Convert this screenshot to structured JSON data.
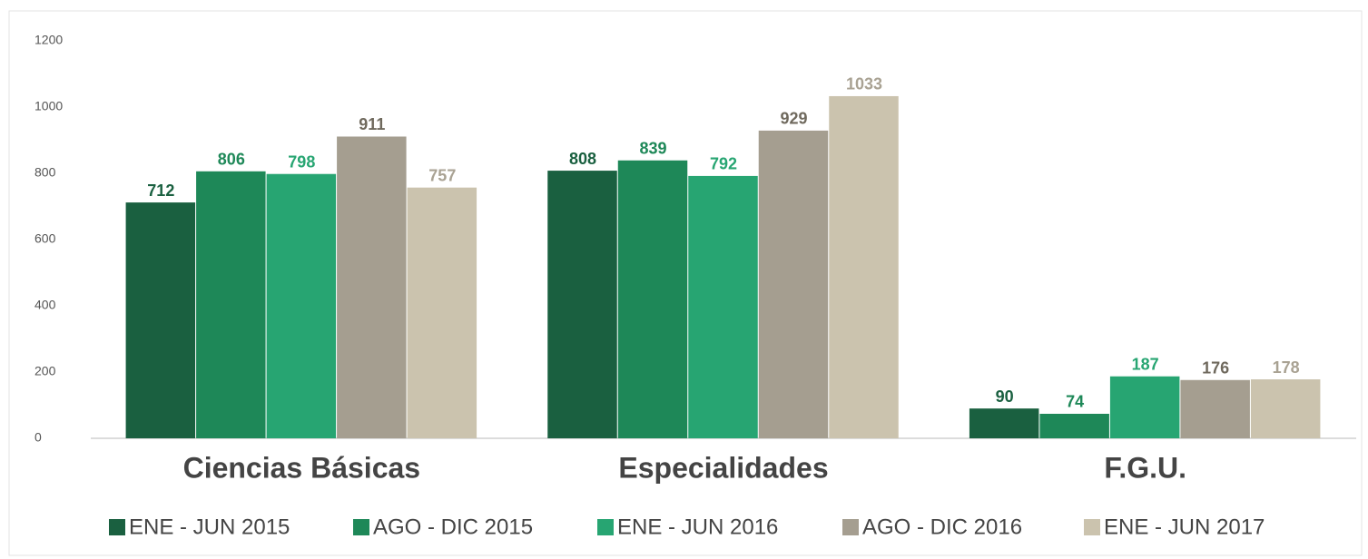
{
  "chart_data": {
    "type": "bar",
    "categories": [
      "Ciencias Básicas",
      "Especialidades",
      "F.G.U."
    ],
    "series": [
      {
        "name": "ENE - JUN 2015",
        "color": "#1a6040",
        "label_color": "#1a6040",
        "values": [
          712,
          808,
          90
        ]
      },
      {
        "name": "AGO - DIC 2015",
        "color": "#1e8858",
        "label_color": "#1e8858",
        "values": [
          806,
          839,
          74
        ]
      },
      {
        "name": "ENE - JUN 2016",
        "color": "#27a572",
        "label_color": "#27a572",
        "values": [
          798,
          792,
          187
        ]
      },
      {
        "name": "AGO - DIC 2016",
        "color": "#a59e90",
        "label_color": "#6f695d",
        "values": [
          911,
          929,
          176
        ]
      },
      {
        "name": "ENE - JUN 2017",
        "color": "#cbc3ae",
        "label_color": "#a9a293",
        "values": [
          757,
          1033,
          178
        ]
      }
    ],
    "ylim": [
      0,
      1200
    ],
    "yticks": [
      0,
      200,
      400,
      600,
      800,
      1000,
      1200
    ],
    "grid": false,
    "legend": "bottom"
  }
}
